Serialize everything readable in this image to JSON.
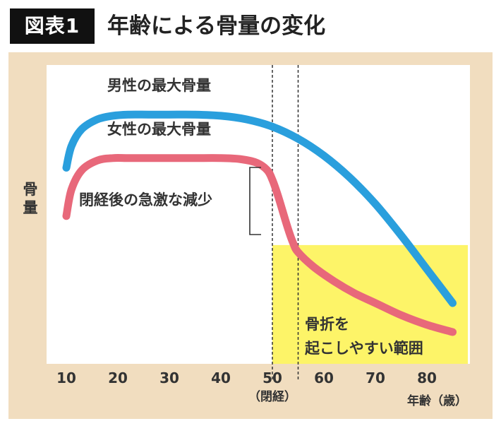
{
  "header": {
    "badge": "図表1",
    "title": "年齢による骨量の変化"
  },
  "colors": {
    "male": "#2a9fdd",
    "female": "#e8687a",
    "risk_zone": "#fdf468",
    "panel_bg": "#f1ddbf",
    "plot_bg": "#ffffff"
  },
  "chart_data": {
    "type": "line",
    "xlabel": "年齢（歳）",
    "ylabel": "骨量",
    "x_ticks": [
      10,
      20,
      30,
      40,
      50,
      60,
      70,
      80
    ],
    "x_tick_labels": [
      "10",
      "20",
      "30",
      "40",
      "50",
      "60",
      "70",
      "80"
    ],
    "x_tick_sublabel": {
      "x": 50,
      "text": "（閉経）"
    },
    "xlim": [
      5,
      88
    ],
    "ylim": [
      0,
      100
    ],
    "y_ticks_shown": false,
    "grid": false,
    "series": [
      {
        "name": "男性の最大骨量",
        "color": "#2a9fdd",
        "x": [
          10,
          11,
          13,
          16,
          19,
          22,
          26,
          30,
          35,
          40,
          45,
          50,
          55,
          60,
          65,
          70,
          75,
          80,
          85
        ],
        "y": [
          68,
          77,
          84,
          88,
          89.5,
          90,
          90,
          90,
          90,
          89.5,
          88,
          85,
          80,
          73,
          64,
          53,
          40,
          26,
          12
        ]
      },
      {
        "name": "女性の最大骨量",
        "color": "#e8687a",
        "x": [
          10,
          11,
          13,
          16,
          19,
          22,
          26,
          30,
          35,
          40,
          44,
          47,
          49,
          50,
          51,
          52,
          53,
          54,
          55,
          58,
          62,
          66,
          70,
          75,
          80,
          85
        ],
        "y": [
          48,
          59,
          67,
          71,
          72,
          72,
          72,
          72,
          72,
          72,
          71.5,
          70,
          67,
          63,
          57,
          50,
          43,
          37,
          33,
          27,
          21,
          16,
          12,
          7,
          3,
          0
        ]
      }
    ],
    "annotations": {
      "menopause_drop": {
        "text": "閉経後の急激な減少",
        "x_range": [
          50,
          55
        ]
      },
      "menopause_lines": [
        50,
        55
      ],
      "fracture_zone": {
        "text_line1": "骨折を",
        "text_line2": "起こしやすい範囲",
        "x_range": [
          50,
          88
        ],
        "y_max": 36
      }
    }
  }
}
